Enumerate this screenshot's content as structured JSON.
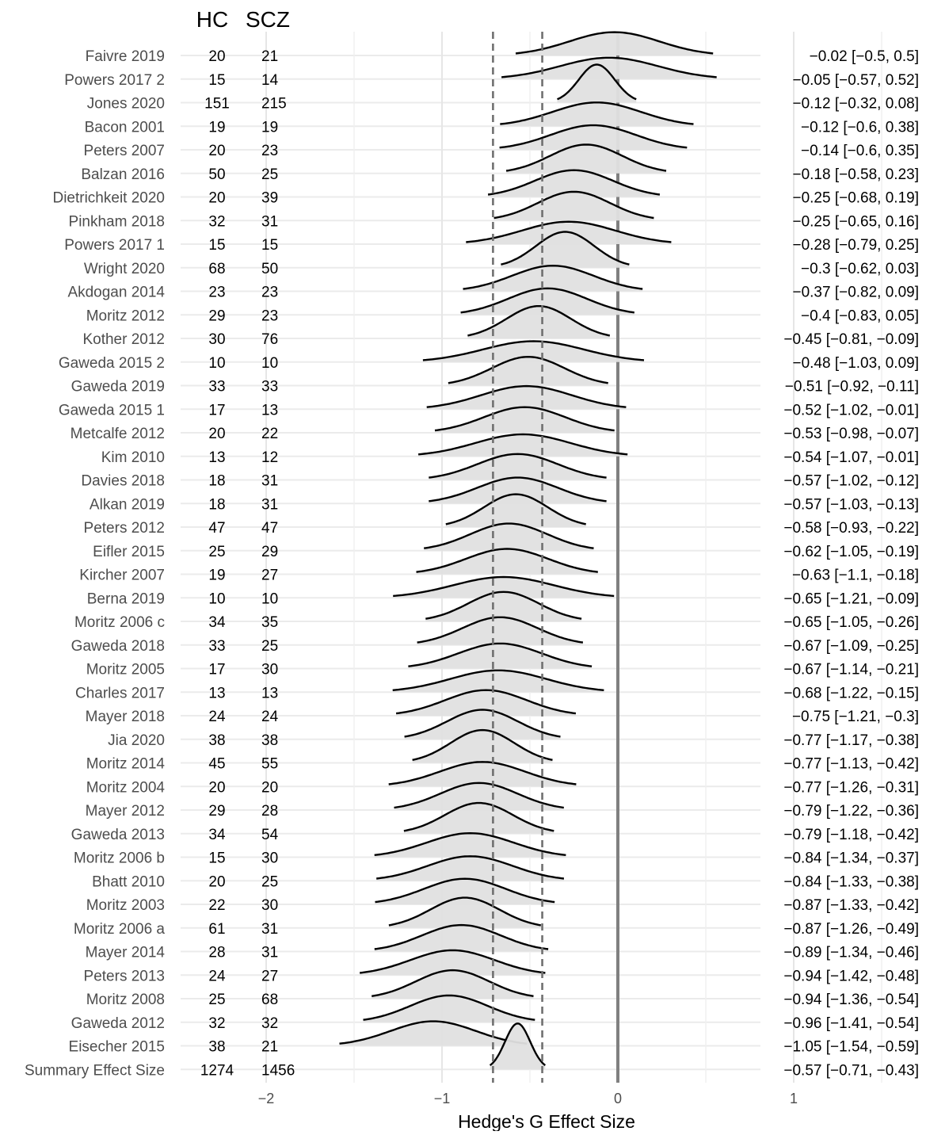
{
  "chart_data": {
    "type": "ridgeline",
    "xlabel": "Hedge's G Effect Size",
    "xlim": [
      -2.2,
      1.7
    ],
    "xticks": [
      -2,
      -1,
      0,
      1
    ],
    "xtick_labels": [
      "−2",
      "−1",
      "0",
      "1"
    ],
    "column_headers": [
      "HC",
      "SCZ"
    ],
    "summary_ci_lines": [
      -0.71,
      -0.43
    ],
    "zero_line": 0,
    "colors": {
      "density_fill": "#e0e0e0",
      "density_line": "#000000",
      "reference_line": "#808080",
      "dashed_line": "#707070",
      "grid": "#ebebeb",
      "text": "#4d4d4d"
    },
    "studies": [
      {
        "label": "Faivre 2019",
        "hc": 20,
        "scz": 21,
        "g": -0.02,
        "lo": -0.5,
        "hi": 0.5,
        "ci_text": "−0.02 [−0.5, 0.5]"
      },
      {
        "label": "Powers 2017 2",
        "hc": 15,
        "scz": 14,
        "g": -0.05,
        "lo": -0.57,
        "hi": 0.52,
        "ci_text": "−0.05 [−0.57, 0.52]"
      },
      {
        "label": "Jones 2020",
        "hc": 151,
        "scz": 215,
        "g": -0.12,
        "lo": -0.32,
        "hi": 0.08,
        "ci_text": "−0.12 [−0.32, 0.08]"
      },
      {
        "label": "Bacon 2001",
        "hc": 19,
        "scz": 19,
        "g": -0.12,
        "lo": -0.6,
        "hi": 0.38,
        "ci_text": "−0.12 [−0.6, 0.38]"
      },
      {
        "label": "Peters 2007",
        "hc": 20,
        "scz": 23,
        "g": -0.14,
        "lo": -0.6,
        "hi": 0.35,
        "ci_text": "−0.14 [−0.6, 0.35]"
      },
      {
        "label": "Balzan 2016",
        "hc": 50,
        "scz": 25,
        "g": -0.18,
        "lo": -0.58,
        "hi": 0.23,
        "ci_text": "−0.18 [−0.58, 0.23]"
      },
      {
        "label": "Dietrichkeit 2020",
        "hc": 20,
        "scz": 39,
        "g": -0.25,
        "lo": -0.68,
        "hi": 0.19,
        "ci_text": "−0.25 [−0.68, 0.19]"
      },
      {
        "label": "Pinkham 2018",
        "hc": 32,
        "scz": 31,
        "g": -0.25,
        "lo": -0.65,
        "hi": 0.16,
        "ci_text": "−0.25 [−0.65, 0.16]"
      },
      {
        "label": "Powers 2017 1",
        "hc": 15,
        "scz": 15,
        "g": -0.28,
        "lo": -0.79,
        "hi": 0.25,
        "ci_text": "−0.28 [−0.79, 0.25]"
      },
      {
        "label": "Wright 2020",
        "hc": 68,
        "scz": 50,
        "g": -0.3,
        "lo": -0.62,
        "hi": 0.03,
        "ci_text": "−0.3 [−0.62, 0.03]"
      },
      {
        "label": "Akdogan 2014",
        "hc": 23,
        "scz": 23,
        "g": -0.37,
        "lo": -0.82,
        "hi": 0.09,
        "ci_text": "−0.37 [−0.82, 0.09]"
      },
      {
        "label": "Moritz 2012",
        "hc": 29,
        "scz": 23,
        "g": -0.4,
        "lo": -0.83,
        "hi": 0.05,
        "ci_text": "−0.4 [−0.83, 0.05]"
      },
      {
        "label": "Kother 2012",
        "hc": 30,
        "scz": 76,
        "g": -0.45,
        "lo": -0.81,
        "hi": -0.09,
        "ci_text": "−0.45 [−0.81, −0.09]"
      },
      {
        "label": "Gaweda 2015 2",
        "hc": 10,
        "scz": 10,
        "g": -0.48,
        "lo": -1.03,
        "hi": 0.09,
        "ci_text": "−0.48 [−1.03, 0.09]"
      },
      {
        "label": "Gaweda 2019",
        "hc": 33,
        "scz": 33,
        "g": -0.51,
        "lo": -0.92,
        "hi": -0.11,
        "ci_text": "−0.51 [−0.92, −0.11]"
      },
      {
        "label": "Gaweda 2015 1",
        "hc": 17,
        "scz": 13,
        "g": -0.52,
        "lo": -1.02,
        "hi": -0.01,
        "ci_text": "−0.52 [−1.02, −0.01]"
      },
      {
        "label": "Metcalfe 2012",
        "hc": 20,
        "scz": 22,
        "g": -0.53,
        "lo": -0.98,
        "hi": -0.07,
        "ci_text": "−0.53 [−0.98, −0.07]"
      },
      {
        "label": "Kim 2010",
        "hc": 13,
        "scz": 12,
        "g": -0.54,
        "lo": -1.07,
        "hi": -0.01,
        "ci_text": "−0.54 [−1.07, −0.01]"
      },
      {
        "label": "Davies 2018",
        "hc": 18,
        "scz": 31,
        "g": -0.57,
        "lo": -1.02,
        "hi": -0.12,
        "ci_text": "−0.57 [−1.02, −0.12]"
      },
      {
        "label": "Alkan 2019",
        "hc": 18,
        "scz": 31,
        "g": -0.57,
        "lo": -1.03,
        "hi": -0.13,
        "ci_text": "−0.57 [−1.03, −0.13]"
      },
      {
        "label": "Peters 2012",
        "hc": 47,
        "scz": 47,
        "g": -0.58,
        "lo": -0.93,
        "hi": -0.22,
        "ci_text": "−0.58 [−0.93, −0.22]"
      },
      {
        "label": "Eifler 2015",
        "hc": 25,
        "scz": 29,
        "g": -0.62,
        "lo": -1.05,
        "hi": -0.19,
        "ci_text": "−0.62 [−1.05, −0.19]"
      },
      {
        "label": "Kircher 2007",
        "hc": 19,
        "scz": 27,
        "g": -0.63,
        "lo": -1.1,
        "hi": -0.18,
        "ci_text": "−0.63 [−1.1, −0.18]"
      },
      {
        "label": "Berna 2019",
        "hc": 10,
        "scz": 10,
        "g": -0.65,
        "lo": -1.21,
        "hi": -0.09,
        "ci_text": "−0.65 [−1.21, −0.09]"
      },
      {
        "label": "Moritz 2006 c",
        "hc": 34,
        "scz": 35,
        "g": -0.65,
        "lo": -1.05,
        "hi": -0.26,
        "ci_text": "−0.65 [−1.05, −0.26]"
      },
      {
        "label": "Gaweda 2018",
        "hc": 33,
        "scz": 25,
        "g": -0.67,
        "lo": -1.09,
        "hi": -0.25,
        "ci_text": "−0.67 [−1.09, −0.25]"
      },
      {
        "label": "Moritz 2005",
        "hc": 17,
        "scz": 30,
        "g": -0.67,
        "lo": -1.14,
        "hi": -0.21,
        "ci_text": "−0.67 [−1.14, −0.21]"
      },
      {
        "label": "Charles 2017",
        "hc": 13,
        "scz": 13,
        "g": -0.68,
        "lo": -1.22,
        "hi": -0.15,
        "ci_text": "−0.68 [−1.22, −0.15]"
      },
      {
        "label": "Mayer 2018",
        "hc": 24,
        "scz": 24,
        "g": -0.75,
        "lo": -1.21,
        "hi": -0.3,
        "ci_text": "−0.75 [−1.21, −0.3]"
      },
      {
        "label": "Jia 2020",
        "hc": 38,
        "scz": 38,
        "g": -0.77,
        "lo": -1.17,
        "hi": -0.38,
        "ci_text": "−0.77 [−1.17, −0.38]"
      },
      {
        "label": "Moritz 2014",
        "hc": 45,
        "scz": 55,
        "g": -0.77,
        "lo": -1.13,
        "hi": -0.42,
        "ci_text": "−0.77 [−1.13, −0.42]"
      },
      {
        "label": "Moritz 2004",
        "hc": 20,
        "scz": 20,
        "g": -0.77,
        "lo": -1.26,
        "hi": -0.31,
        "ci_text": "−0.77 [−1.26, −0.31]"
      },
      {
        "label": "Mayer 2012",
        "hc": 29,
        "scz": 28,
        "g": -0.79,
        "lo": -1.22,
        "hi": -0.36,
        "ci_text": "−0.79 [−1.22, −0.36]"
      },
      {
        "label": "Gaweda 2013",
        "hc": 34,
        "scz": 54,
        "g": -0.79,
        "lo": -1.18,
        "hi": -0.42,
        "ci_text": "−0.79 [−1.18, −0.42]"
      },
      {
        "label": "Moritz 2006 b",
        "hc": 15,
        "scz": 30,
        "g": -0.84,
        "lo": -1.34,
        "hi": -0.37,
        "ci_text": "−0.84 [−1.34, −0.37]"
      },
      {
        "label": "Bhatt 2010",
        "hc": 20,
        "scz": 25,
        "g": -0.84,
        "lo": -1.33,
        "hi": -0.38,
        "ci_text": "−0.84 [−1.33, −0.38]"
      },
      {
        "label": "Moritz 2003",
        "hc": 22,
        "scz": 30,
        "g": -0.87,
        "lo": -1.33,
        "hi": -0.42,
        "ci_text": "−0.87 [−1.33, −0.42]"
      },
      {
        "label": "Moritz 2006 a",
        "hc": 61,
        "scz": 31,
        "g": -0.87,
        "lo": -1.26,
        "hi": -0.49,
        "ci_text": "−0.87 [−1.26, −0.49]"
      },
      {
        "label": "Mayer 2014",
        "hc": 28,
        "scz": 31,
        "g": -0.89,
        "lo": -1.34,
        "hi": -0.46,
        "ci_text": "−0.89 [−1.34, −0.46]"
      },
      {
        "label": "Peters 2013",
        "hc": 24,
        "scz": 27,
        "g": -0.94,
        "lo": -1.42,
        "hi": -0.48,
        "ci_text": "−0.94 [−1.42, −0.48]"
      },
      {
        "label": "Moritz 2008",
        "hc": 25,
        "scz": 68,
        "g": -0.94,
        "lo": -1.36,
        "hi": -0.54,
        "ci_text": "−0.94 [−1.36, −0.54]"
      },
      {
        "label": "Gaweda 2012",
        "hc": 32,
        "scz": 32,
        "g": -0.96,
        "lo": -1.41,
        "hi": -0.54,
        "ci_text": "−0.96 [−1.41, −0.54]"
      },
      {
        "label": "Eisecher 2015",
        "hc": 38,
        "scz": 21,
        "g": -1.05,
        "lo": -1.54,
        "hi": -0.59,
        "ci_text": "−1.05 [−1.54, −0.59]"
      }
    ],
    "summary": {
      "label": "Summary Effect Size",
      "hc": 1274,
      "scz": 1456,
      "g": -0.57,
      "lo": -0.71,
      "hi": -0.43,
      "ci_text": "−0.57 [−0.71, −0.43]"
    }
  }
}
